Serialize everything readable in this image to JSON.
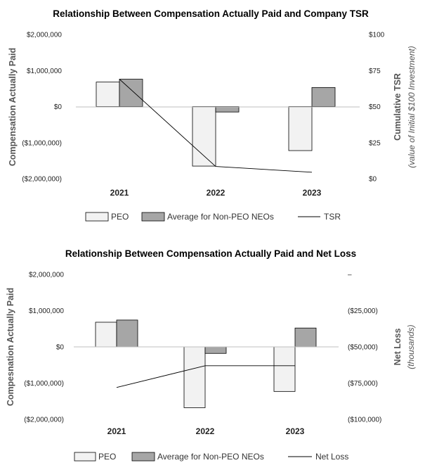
{
  "chart_data": [
    {
      "type": "bar",
      "title": "Relationship Between Compensation Actually Paid and Company TSR",
      "categories": [
        "2021",
        "2022",
        "2023"
      ],
      "ylabel": "Compensation Actually Paid",
      "ylim": [
        -2000000,
        2000000
      ],
      "y_ticks": [
        2000000,
        1000000,
        0,
        -1000000,
        -2000000
      ],
      "y_tick_labels": [
        "$2,000,000",
        "$1,000,000",
        "$0",
        "($1,000,000)",
        "($2,000,000)"
      ],
      "y2label": "Cumulative TSR",
      "y2label_sub": "(value of Initial $100 Investment)",
      "y2lim": [
        0,
        100
      ],
      "y2_ticks": [
        100,
        75,
        50,
        25,
        0
      ],
      "y2_tick_labels": [
        "$100",
        "$75",
        "$50",
        "$25",
        "$0"
      ],
      "series": [
        {
          "name": "PEO",
          "kind": "bar",
          "color": "#f2f2f2",
          "values": [
            680000,
            -1650000,
            -1220000
          ]
        },
        {
          "name": "Average for Non-PEO NEOs",
          "kind": "bar",
          "color": "#a6a6a6",
          "values": [
            760000,
            -150000,
            530000
          ]
        },
        {
          "name": "TSR",
          "kind": "line",
          "axis": "right",
          "color": "#000000",
          "values": [
            69,
            8.5,
            4.5
          ]
        }
      ],
      "legend": [
        "PEO",
        "Average for Non-PEO NEOs",
        "TSR"
      ]
    },
    {
      "type": "bar",
      "title": "Relationship Between Compensation Actually Paid and Net Loss",
      "categories": [
        "2021",
        "2022",
        "2023"
      ],
      "ylabel": "Compesnation Actually Paid",
      "ylim": [
        -2000000,
        2000000
      ],
      "y_ticks": [
        2000000,
        1000000,
        0,
        -1000000,
        -2000000
      ],
      "y_tick_labels": [
        "$2,000,000",
        "$1,000,000",
        "$0",
        "($1,000,000)",
        "($2,000,000)"
      ],
      "y2label": "Net Loss",
      "y2label_sub": "(thousands)",
      "y2lim": [
        -100000,
        0
      ],
      "y2_ticks": [
        0,
        -25000,
        -50000,
        -75000,
        -100000
      ],
      "y2_tick_labels": [
        "–",
        "($25,000)",
        "($50,000)",
        "($75,000)",
        "($100,000)"
      ],
      "series": [
        {
          "name": "PEO",
          "kind": "bar",
          "color": "#f2f2f2",
          "values": [
            680000,
            -1680000,
            -1230000
          ]
        },
        {
          "name": "Average for Non-PEO NEOs",
          "kind": "bar",
          "color": "#a6a6a6",
          "values": [
            740000,
            -180000,
            520000
          ]
        },
        {
          "name": "Net Loss",
          "kind": "line",
          "axis": "right",
          "color": "#000000",
          "values": [
            -78000,
            -63000,
            -63000
          ]
        }
      ],
      "legend": [
        "PEO",
        "Average for Non-PEO NEOs",
        "Net Loss"
      ]
    }
  ]
}
